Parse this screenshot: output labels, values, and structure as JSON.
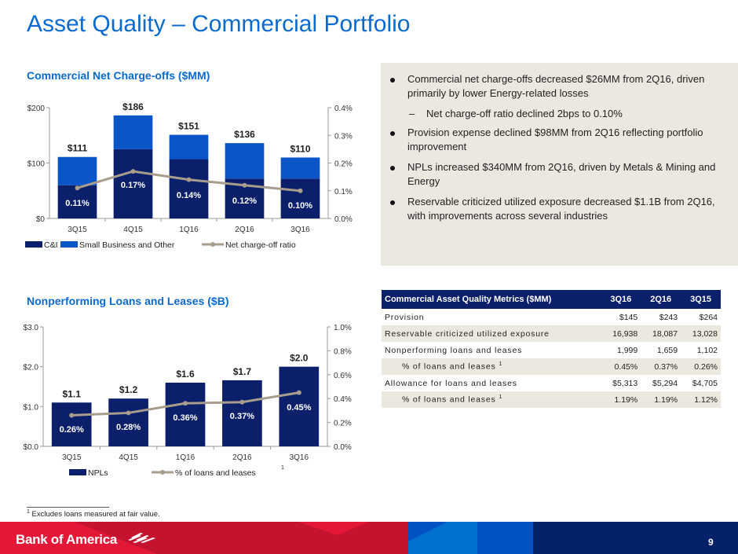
{
  "page": {
    "title": "Asset Quality – Commercial Portfolio",
    "page_number": "9",
    "brand": "Bank of America",
    "footnote_mark": "1",
    "footnote": "Excludes loans measured at fair value."
  },
  "commentary": {
    "bullets": [
      {
        "text": "Commercial net charge-offs decreased $26MM from 2Q16, driven primarily by lower Energy-related losses",
        "level": 1
      },
      {
        "text": "Net charge-off ratio declined 2bps to 0.10%",
        "level": 2
      },
      {
        "text": "Provision expense declined $98MM from 2Q16 reflecting portfolio improvement",
        "level": 1
      },
      {
        "text": "NPLs increased $340MM from 2Q16, driven by Metals & Mining and Energy",
        "level": 1
      },
      {
        "text": "Reservable criticized utilized exposure decreased $1.1B from 2Q16, with improvements across several industries",
        "level": 1
      }
    ]
  },
  "metrics_table": {
    "headers": [
      "Commercial Asset Quality Metrics ($MM)",
      "3Q16",
      "2Q16",
      "3Q15"
    ],
    "rows": [
      {
        "label": "Provision",
        "values": [
          "$145",
          "$243",
          "$264"
        ],
        "indent": false,
        "sup": ""
      },
      {
        "label": "Reservable criticized utilized exposure",
        "values": [
          "16,938",
          "18,087",
          "13,028"
        ],
        "indent": false,
        "sup": ""
      },
      {
        "label": "Nonperforming loans and leases",
        "values": [
          "1,999",
          "1,659",
          "1,102"
        ],
        "indent": false,
        "sup": ""
      },
      {
        "label": "% of loans and leases",
        "values": [
          "0.45%",
          "0.37%",
          "0.26%"
        ],
        "indent": true,
        "sup": "1"
      },
      {
        "label": "Allowance for loans and leases",
        "values": [
          "$5,313",
          "$5,294",
          "$4,705"
        ],
        "indent": false,
        "sup": ""
      },
      {
        "label": "% of loans and leases",
        "values": [
          "1.19%",
          "1.19%",
          "1.12%"
        ],
        "indent": true,
        "sup": "1"
      }
    ]
  },
  "colors": {
    "title_blue": "#0a6ad0",
    "navy": "#0b1f6b",
    "bright_blue": "#0a55c8",
    "line_tan": "#a89c8c",
    "panel_bg": "#ebe8e0",
    "brand_red": "#e31837"
  },
  "chart_data": [
    {
      "type": "bar",
      "stacked": true,
      "title": "Commercial Net Charge-offs ($MM)",
      "categories": [
        "3Q15",
        "4Q15",
        "1Q16",
        "2Q16",
        "3Q16"
      ],
      "series": [
        {
          "name": "C&I",
          "values": [
            60,
            125,
            107,
            72,
            72
          ],
          "color": "#0b1f6b"
        },
        {
          "name": "Small Business and Other",
          "values": [
            51,
            61,
            44,
            64,
            38
          ],
          "color": "#0a55c8"
        }
      ],
      "totals": [
        111,
        186,
        151,
        136,
        110
      ],
      "total_labels": [
        "$111",
        "$186",
        "$151",
        "$136",
        "$110"
      ],
      "line": {
        "name": "Net charge-off ratio",
        "values": [
          0.11,
          0.17,
          0.14,
          0.12,
          0.1
        ],
        "labels": [
          "0.11%",
          "0.17%",
          "0.14%",
          "0.12%",
          "0.10%"
        ],
        "axis": "right",
        "color": "#a89c8c"
      },
      "ylim": [
        0,
        200
      ],
      "yticks": [
        "$0",
        "$100",
        "$200"
      ],
      "y2lim": [
        0,
        0.4
      ],
      "y2ticks": [
        "0.0%",
        "0.1%",
        "0.2%",
        "0.3%",
        "0.4%"
      ],
      "legend": [
        "C&I",
        "Small Business and Other",
        "Net charge-off ratio"
      ],
      "legend_position": "bottom"
    },
    {
      "type": "bar",
      "title": "Nonperforming Loans and Leases ($B)",
      "categories": [
        "3Q15",
        "4Q15",
        "1Q16",
        "2Q16",
        "3Q16"
      ],
      "series": [
        {
          "name": "NPLs",
          "values": [
            1.1,
            1.2,
            1.6,
            1.66,
            2.0
          ],
          "color": "#0b1f6b"
        }
      ],
      "total_labels": [
        "$1.1",
        "$1.2",
        "$1.6",
        "$1.7",
        "$2.0"
      ],
      "line": {
        "name": "% of loans and leases",
        "sup": "1",
        "values": [
          0.26,
          0.28,
          0.36,
          0.37,
          0.45
        ],
        "labels": [
          "0.26%",
          "0.28%",
          "0.36%",
          "0.37%",
          "0.45%"
        ],
        "axis": "right",
        "color": "#a89c8c"
      },
      "ylim": [
        0,
        3.0
      ],
      "yticks": [
        "$0.0",
        "$1.0",
        "$2.0",
        "$3.0"
      ],
      "y2lim": [
        0,
        1.0
      ],
      "y2ticks": [
        "0.0%",
        "0.2%",
        "0.4%",
        "0.6%",
        "0.8%",
        "1.0%"
      ],
      "legend": [
        "NPLs",
        "% of loans and leases"
      ],
      "legend_position": "bottom"
    }
  ]
}
